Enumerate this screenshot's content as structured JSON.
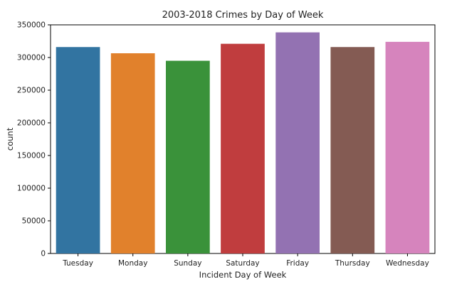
{
  "chart_data": {
    "type": "bar",
    "title": "2003-2018 Crimes by Day of Week",
    "xlabel": "Incident Day of Week",
    "ylabel": "count",
    "categories": [
      "Tuesday",
      "Monday",
      "Sunday",
      "Saturday",
      "Friday",
      "Thursday",
      "Wednesday"
    ],
    "values": [
      316000,
      306500,
      295000,
      321000,
      338500,
      316000,
      324000
    ],
    "colors": [
      "#3274a1",
      "#e1812c",
      "#3a923a",
      "#c03d3e",
      "#9372b2",
      "#845b53",
      "#d684bd"
    ],
    "ylim": [
      0,
      350000
    ],
    "yticks": [
      0,
      50000,
      100000,
      150000,
      200000,
      250000,
      300000,
      350000
    ],
    "ytick_labels": [
      "0",
      "50000",
      "100000",
      "150000",
      "200000",
      "250000",
      "300000",
      "350000"
    ],
    "grid": false,
    "legend": "none"
  }
}
